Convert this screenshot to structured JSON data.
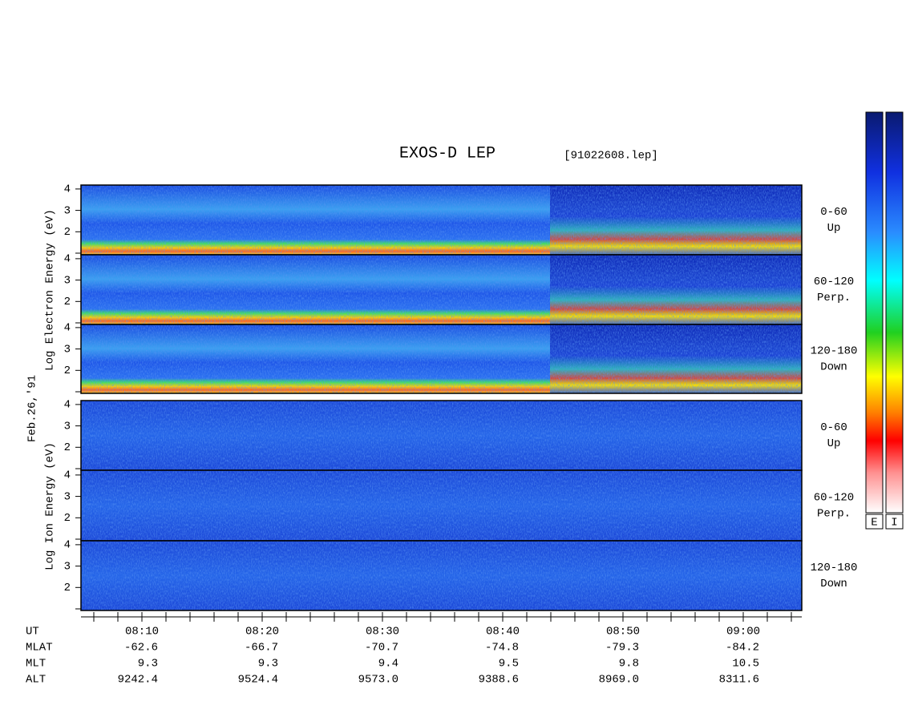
{
  "header": {
    "title": "EXOS-D LEP",
    "file": "[91022608.lep]"
  },
  "left_labels": {
    "electron": "Log  Electron  Energy (eV)",
    "date": "Feb.26,'91",
    "ion": "Log  Ion  Energy (eV)"
  },
  "panels": [
    {
      "angle": "0-60",
      "direction": "Up"
    },
    {
      "angle": "60-120",
      "direction": "Perp."
    },
    {
      "angle": "120-180",
      "direction": "Down"
    },
    {
      "angle": "0-60",
      "direction": "Up"
    },
    {
      "angle": "60-120",
      "direction": "Perp."
    },
    {
      "angle": "120-180",
      "direction": "Down"
    }
  ],
  "yticks": [
    2,
    3,
    4
  ],
  "orbit": {
    "rows": [
      {
        "name": "UT",
        "values": [
          "08:10",
          "08:20",
          "08:30",
          "08:40",
          "08:50",
          "09:00"
        ]
      },
      {
        "name": "MLAT",
        "values": [
          "-62.6",
          "-66.7",
          "-70.7",
          "-74.8",
          "-79.3",
          "-84.2"
        ]
      },
      {
        "name": "MLT",
        "values": [
          "9.3",
          "9.3",
          "9.4",
          "9.5",
          "9.8",
          "10.5"
        ]
      },
      {
        "name": "ALT",
        "values": [
          "9242.4",
          "9524.4",
          "9573.0",
          "9388.6",
          "8969.0",
          "8311.6"
        ]
      }
    ]
  },
  "colorbars": [
    "E",
    "I"
  ]
}
